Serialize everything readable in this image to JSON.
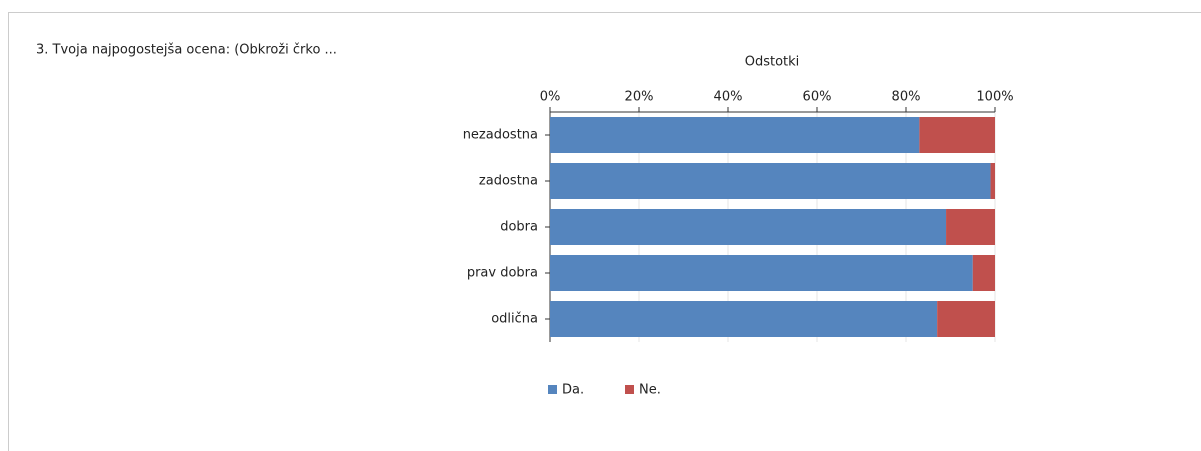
{
  "chart_data": {
    "type": "bar",
    "orientation": "horizontal",
    "stacked": true,
    "title": "3. Tvoja najpogostejša ocena: (Obkroži črko ...",
    "x_label": "Odstotki",
    "categories": [
      "nezadostna",
      "zadostna",
      "dobra",
      "prav dobra",
      "odlična"
    ],
    "series": [
      {
        "name": "Da.",
        "color": "#5585be",
        "values": [
          83,
          99,
          89,
          95,
          87
        ]
      },
      {
        "name": "Ne.",
        "color": "#c0504d",
        "values": [
          17,
          1,
          11,
          5,
          13
        ]
      }
    ],
    "xlim": [
      0,
      100
    ],
    "xticks": [
      {
        "value": 0,
        "label": "0%"
      },
      {
        "value": 20,
        "label": "20%"
      },
      {
        "value": 40,
        "label": "40%"
      },
      {
        "value": 60,
        "label": "60%"
      },
      {
        "value": 80,
        "label": "80%"
      },
      {
        "value": 100,
        "label": "100%"
      }
    ],
    "grid": true,
    "legend": "bottom"
  }
}
